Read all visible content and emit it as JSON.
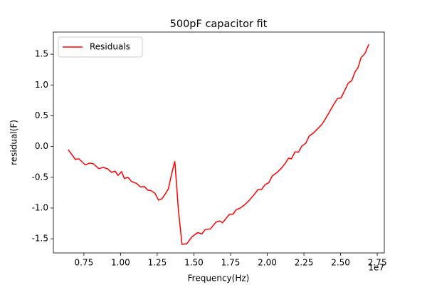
{
  "chart_data": {
    "type": "line",
    "title": "500pF capacitor fit",
    "x_label": "Frequency(Hz)",
    "y_label": "residual(F)",
    "x_offset_label": "1e7",
    "x": [
      6430000,
      6920000,
      7160000,
      7600000,
      7890000,
      8130000,
      8520000,
      8810000,
      9100000,
      9390000,
      9630000,
      9830000,
      10070000,
      10260000,
      10500000,
      10750000,
      11090000,
      11370000,
      11620000,
      11860000,
      12100000,
      12340000,
      12590000,
      12830000,
      13020000,
      13260000,
      13460000,
      13700000,
      13940000,
      14190000,
      14520000,
      14860000,
      15250000,
      15540000,
      15780000,
      16120000,
      16510000,
      16750000,
      16950000,
      17190000,
      17430000,
      17670000,
      17870000,
      18160000,
      18450000,
      18790000,
      19080000,
      19370000,
      19610000,
      19850000,
      20100000,
      20340000,
      20680000,
      20970000,
      21210000,
      21450000,
      21650000,
      21890000,
      22130000,
      22370000,
      22620000,
      22860000,
      23150000,
      23440000,
      23730000,
      23970000,
      24260000,
      24500000,
      24790000,
      25030000,
      25320000,
      25520000,
      25760000,
      26000000,
      26190000,
      26390000,
      26680000,
      26920000
    ],
    "series": [
      {
        "name": "Residuals",
        "color": "#ff0000",
        "values": [
          -0.05,
          -0.21,
          -0.2,
          -0.3,
          -0.27,
          -0.28,
          -0.36,
          -0.34,
          -0.36,
          -0.42,
          -0.4,
          -0.47,
          -0.41,
          -0.52,
          -0.5,
          -0.57,
          -0.6,
          -0.66,
          -0.65,
          -0.71,
          -0.72,
          -0.76,
          -0.87,
          -0.85,
          -0.78,
          -0.69,
          -0.47,
          -0.24,
          -1.02,
          -1.59,
          -1.58,
          -1.47,
          -1.4,
          -1.42,
          -1.35,
          -1.34,
          -1.23,
          -1.21,
          -1.24,
          -1.17,
          -1.1,
          -1.1,
          -1.03,
          -1.0,
          -0.95,
          -0.87,
          -0.79,
          -0.7,
          -0.7,
          -0.62,
          -0.59,
          -0.48,
          -0.42,
          -0.35,
          -0.28,
          -0.19,
          -0.2,
          -0.09,
          -0.09,
          0.01,
          0.05,
          0.17,
          0.22,
          0.29,
          0.36,
          0.45,
          0.57,
          0.67,
          0.78,
          0.79,
          0.93,
          1.03,
          1.07,
          1.22,
          1.28,
          1.44,
          1.52,
          1.66
        ]
      }
    ],
    "xlim": [
      5420000,
      27980000
    ],
    "xticks": [
      {
        "value": 7500000,
        "label": "0.75"
      },
      {
        "value": 10000000,
        "label": "1.00"
      },
      {
        "value": 12500000,
        "label": "1.25"
      },
      {
        "value": 15000000,
        "label": "1.50"
      },
      {
        "value": 17500000,
        "label": "1.75"
      },
      {
        "value": 20000000,
        "label": "2.00"
      },
      {
        "value": 22500000,
        "label": "2.25"
      },
      {
        "value": 25000000,
        "label": "2.50"
      },
      {
        "value": 27500000,
        "label": "2.75"
      }
    ],
    "ylim": [
      -1.73,
      1.86
    ],
    "yticks": [
      -1.5,
      {
        "value": -1.0,
        "label": "-1.0"
      },
      -0.5,
      {
        "value": 0.0,
        "label": "0.0"
      },
      0.5,
      {
        "value": 1.0,
        "label": "1.0"
      },
      1.5
    ],
    "legend": "upper left",
    "grid": false
  }
}
